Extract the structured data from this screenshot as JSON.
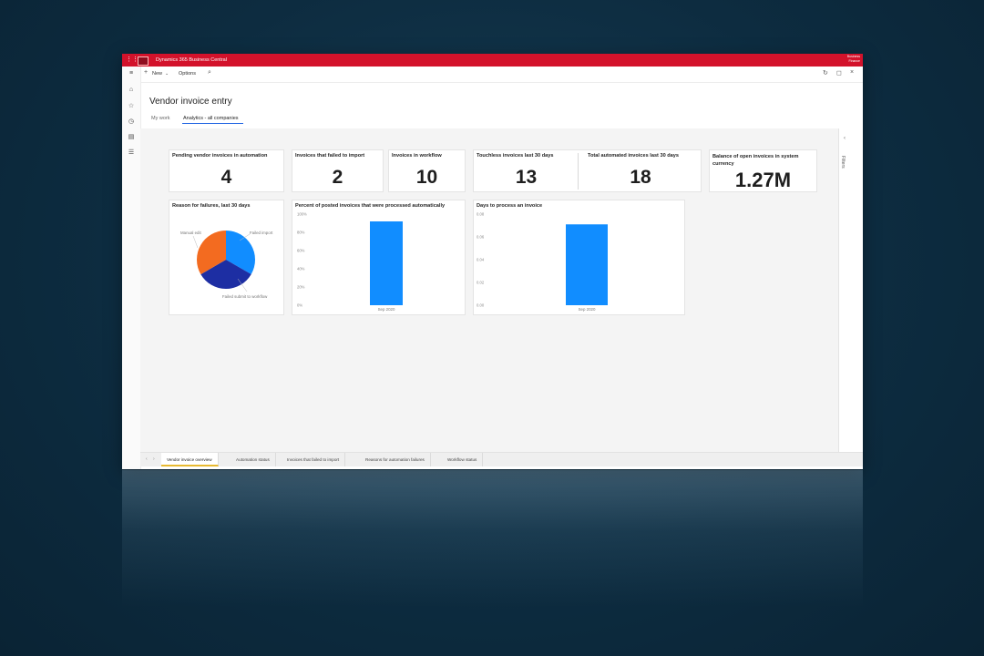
{
  "titlebar": {
    "app_name": "Dynamics 365 Business Central",
    "right_line1": "Business",
    "right_line2": "Finance"
  },
  "commandbar": {
    "new_label": "New",
    "options_label": "Options"
  },
  "page": {
    "title": "Vendor invoice entry",
    "tabs": [
      {
        "label": "My work"
      },
      {
        "label": "Analytics - all companies"
      }
    ]
  },
  "kpis": {
    "pending": {
      "title": "Pending vendor invoices in automation",
      "value": "4"
    },
    "failed": {
      "title": "Invoices that failed to import",
      "value": "2"
    },
    "workflow": {
      "title": "Invoices in workflow",
      "value": "10"
    },
    "touchless": {
      "title": "Touchless invoices last 30 days",
      "value": "13"
    },
    "automated": {
      "title": "Total automated invoices last 30 days",
      "value": "18"
    },
    "balance": {
      "title": "Balance of open invoices in system currency",
      "value": "1.27M"
    }
  },
  "right_panel": {
    "filters_label": "Filters"
  },
  "bottom_tabs": [
    {
      "label": "Vendor invoice overview"
    },
    {
      "label": "Automation status"
    },
    {
      "label": "Invoices that failed to import"
    },
    {
      "label": "Reasons for automation failures"
    },
    {
      "label": "Workflow status"
    }
  ],
  "colors": {
    "brand_red": "#d3122b",
    "bar_blue": "#118dff",
    "pie_orange": "#f36b20",
    "pie_navy": "#1d2ea3"
  },
  "chart_data": [
    {
      "type": "pie",
      "title": "Reason for failures, last 30 days",
      "labels": [
        "Failed import",
        "Failed submit to workflow",
        "Manual edit"
      ],
      "values": [
        33.3,
        33.3,
        33.4
      ]
    },
    {
      "type": "bar",
      "title": "Percent of posted invoices that were processed automatically",
      "categories": [
        "Sep 2020"
      ],
      "values": [
        92
      ],
      "yticks": [
        "100%",
        "80%",
        "60%",
        "40%",
        "20%",
        "0%"
      ],
      "ylim": [
        0,
        100
      ]
    },
    {
      "type": "bar",
      "title": "Days to process an invoice",
      "categories": [
        "Sep 2020"
      ],
      "values": [
        0.071
      ],
      "yticks": [
        "0.08",
        "0.06",
        "0.04",
        "0.02",
        "0.00"
      ],
      "ylim": [
        0,
        0.08
      ]
    }
  ]
}
